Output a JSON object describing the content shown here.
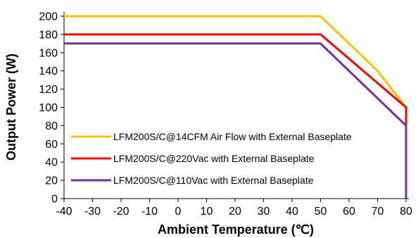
{
  "chart_data": {
    "type": "line",
    "title": "",
    "xlabel": "Ambient  Temperature (℃)",
    "ylabel": "Output Power (W)",
    "xlim": [
      -40,
      80
    ],
    "ylim": [
      0,
      200
    ],
    "x_ticks": [
      "-40",
      "-30",
      "-20",
      "-10",
      "0",
      "10",
      "20",
      "30",
      "40",
      "50",
      "60",
      "70",
      "80"
    ],
    "y_ticks": [
      "0",
      "20",
      "40",
      "60",
      "80",
      "100",
      "120",
      "140",
      "160",
      "180",
      "200"
    ],
    "grid": false,
    "legend_position": "bottom-left",
    "series": [
      {
        "name": "LFM200S/C@14CFM Air Flow with External Baseplate",
        "color": "#FFC000",
        "x": [
          -40,
          50,
          70,
          80,
          80
        ],
        "y": [
          200,
          200,
          140,
          100,
          100
        ]
      },
      {
        "name": "LFM200S/C@220Vac with External Baseplate",
        "color": "#FF0000",
        "x": [
          -40,
          50,
          80,
          80
        ],
        "y": [
          180,
          180,
          100,
          80
        ]
      },
      {
        "name": "LFM200S/C@110Vac with External Baseplate",
        "color": "#7030A0",
        "x": [
          -40,
          50,
          80,
          80
        ],
        "y": [
          170,
          170,
          80,
          0
        ]
      }
    ]
  }
}
